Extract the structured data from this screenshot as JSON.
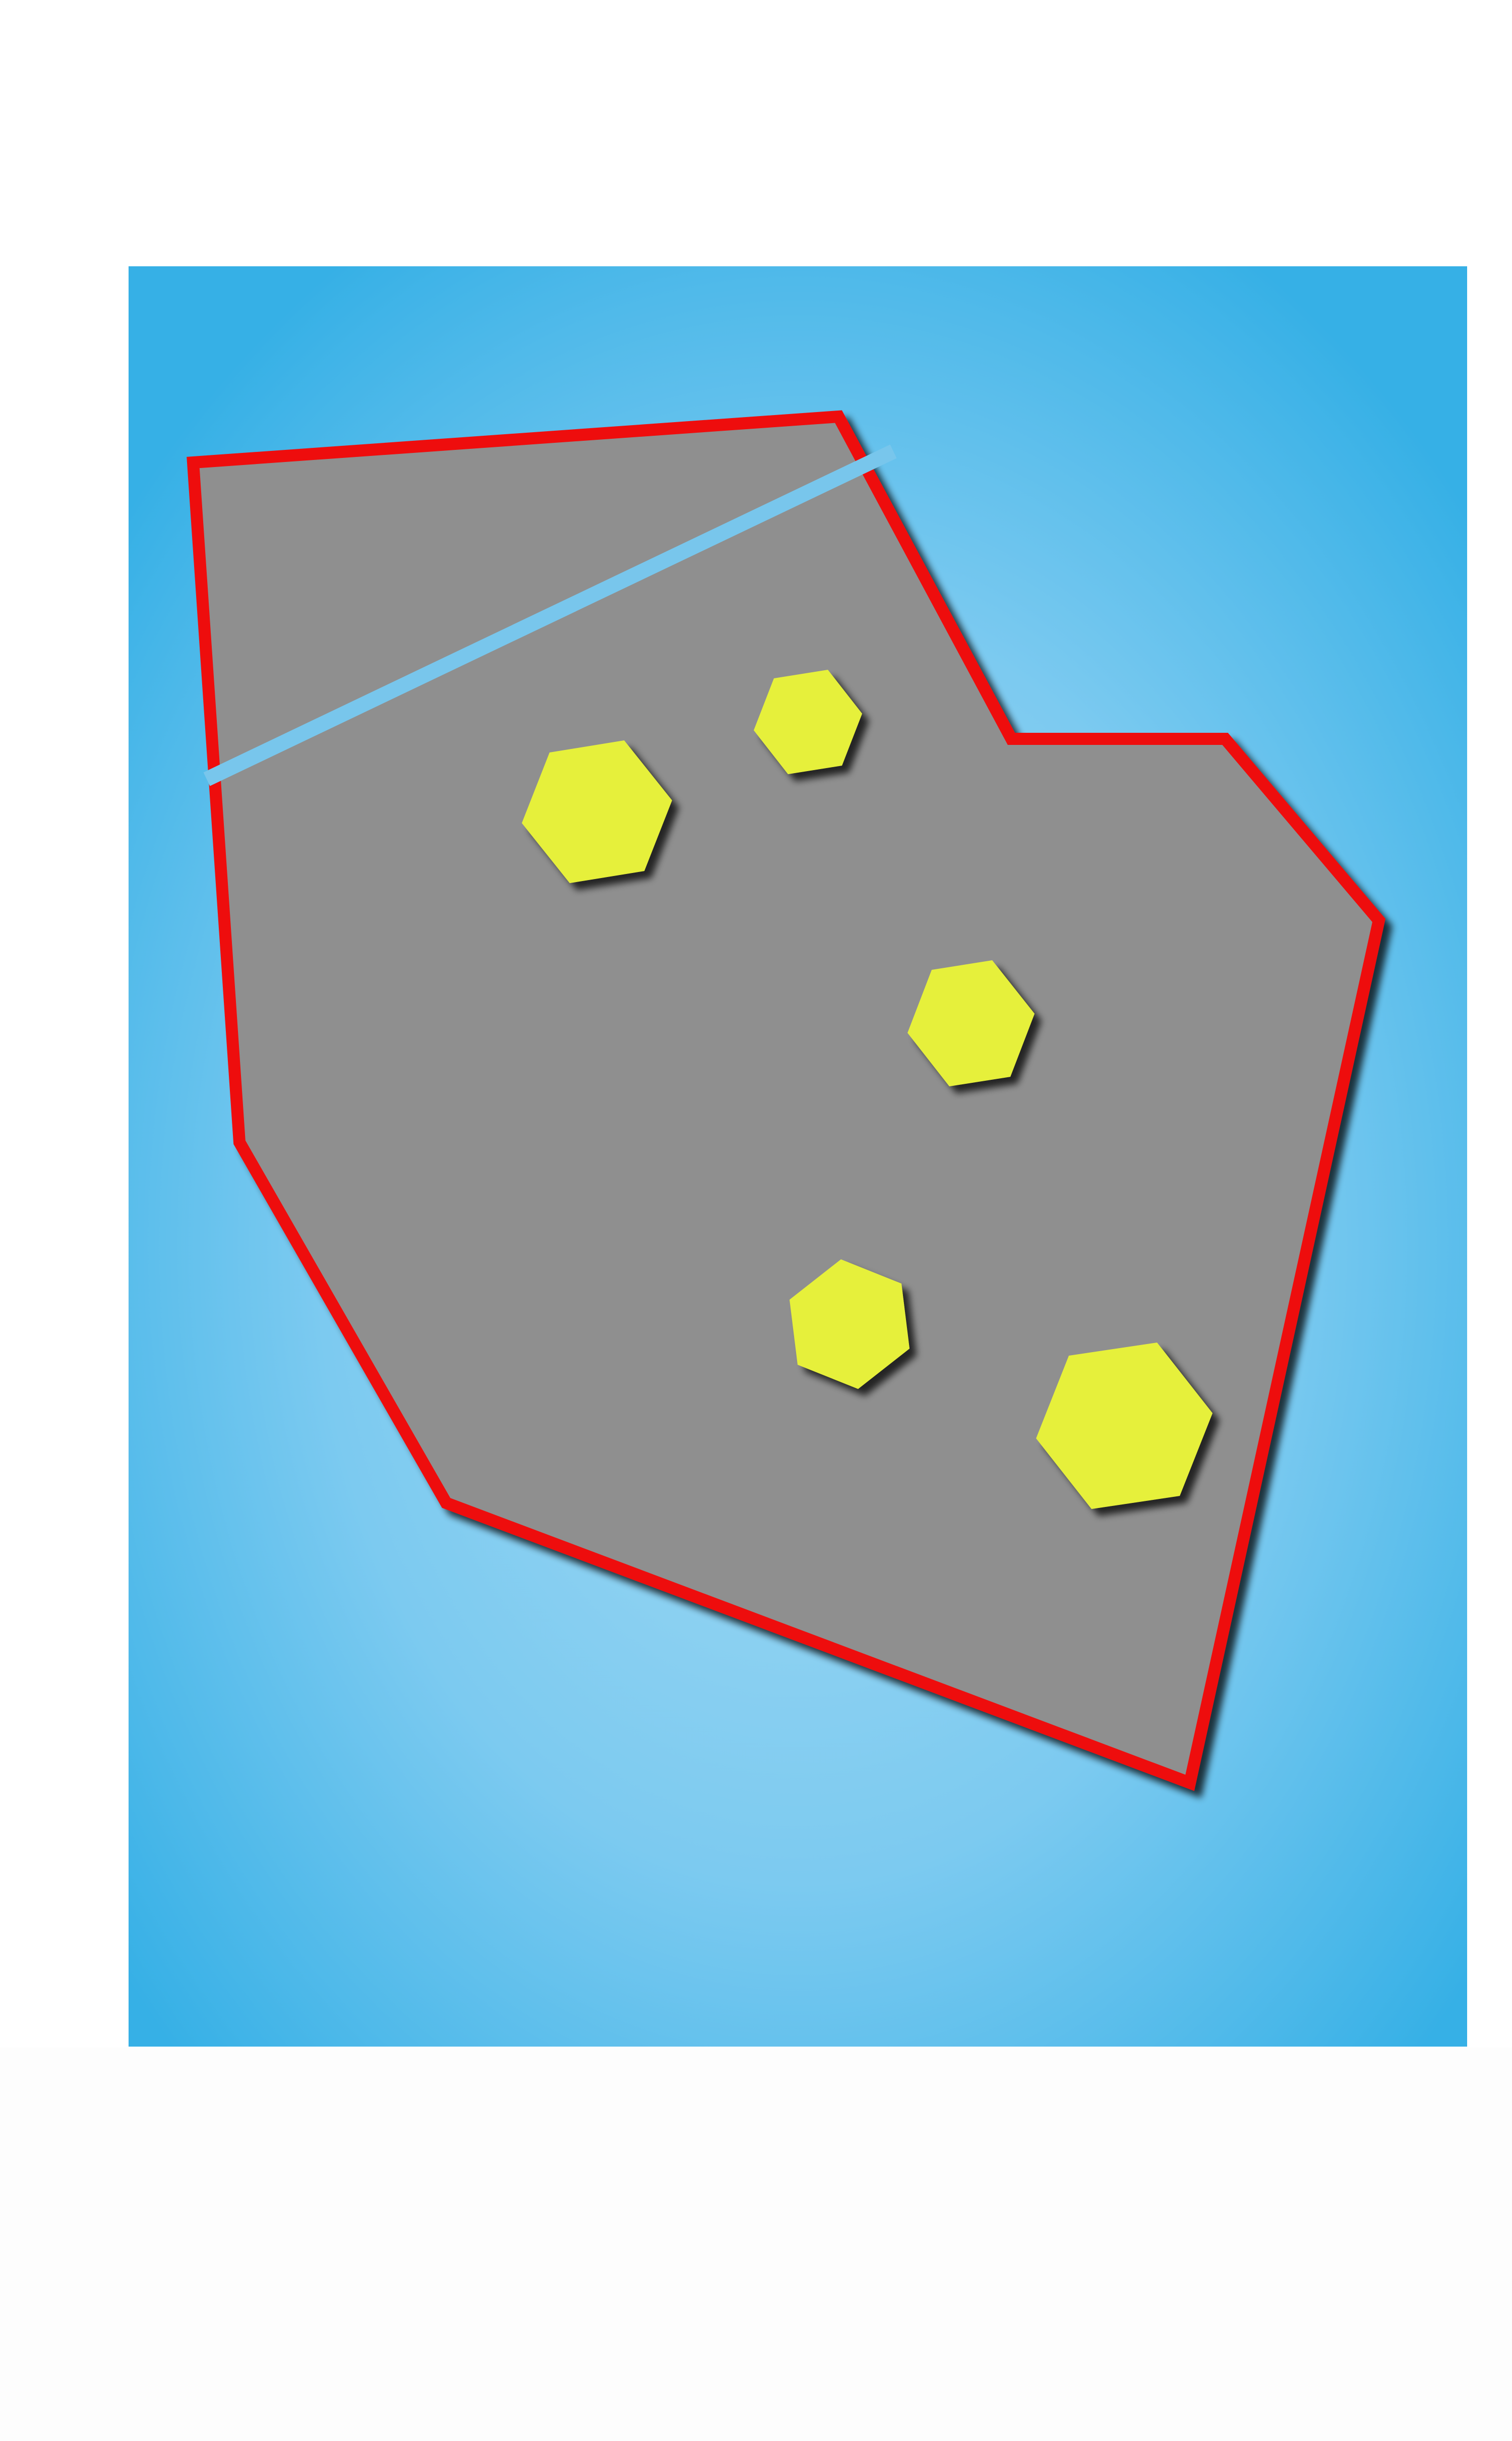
{
  "colors": {
    "page_background": "#ffffff",
    "panel_edge": "#36b0e6",
    "panel_center": "#a3daf3",
    "polygon_fill": "#8f8f8f",
    "polygon_stroke": "#ee0e0e",
    "stripe": "#78c6ec",
    "hexagon_fill": "#e6f03a",
    "shadow": "#1f1f1f"
  },
  "diagram": {
    "background": "radial-gradient-blue-panel",
    "shape": "gray-irregular-polygon",
    "outline": "red-border",
    "stripe": "light-blue-diagonal-line",
    "hexagon_count": 5
  }
}
